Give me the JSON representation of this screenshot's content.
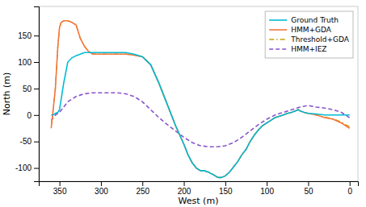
{
  "chart_data": {
    "type": "line",
    "xlabel": "West (m)",
    "ylabel": "North (m)",
    "xlim": [
      375,
      -10
    ],
    "ylim": [
      -125,
      205
    ],
    "xticks": [
      350,
      300,
      250,
      200,
      150,
      100,
      50,
      0
    ],
    "yticks": [
      -100,
      -50,
      0,
      50,
      100,
      150
    ],
    "grid": false,
    "legend": "upper right",
    "series": [
      {
        "name": "Ground Truth",
        "color": "#00bcd4",
        "line_style": "solid",
        "x": [
          0,
          5,
          10,
          20,
          30,
          40,
          50,
          55,
          60,
          62,
          65,
          70,
          75,
          80,
          90,
          95,
          100,
          105,
          110,
          115,
          120,
          125,
          130,
          135,
          140,
          145,
          150,
          155,
          158,
          160,
          162,
          165,
          168,
          170,
          172,
          174,
          175,
          176,
          178,
          180,
          185,
          190,
          195,
          200,
          210,
          220,
          230,
          240,
          250,
          260,
          270,
          280,
          290,
          300,
          310,
          315,
          320,
          325,
          330,
          335,
          340,
          345,
          348,
          350,
          352,
          355,
          358,
          360
        ],
        "values": [
          0,
          0,
          0,
          0,
          0,
          2,
          3,
          5,
          8,
          10,
          8,
          5,
          3,
          0,
          -5,
          -10,
          -15,
          -20,
          -28,
          -38,
          -50,
          -65,
          -75,
          -88,
          -98,
          -108,
          -115,
          -118,
          -118,
          -117,
          -115,
          -112,
          -110,
          -108,
          -107,
          -106,
          -105,
          -105,
          -105,
          -105,
          -100,
          -90,
          -75,
          -55,
          -20,
          20,
          60,
          95,
          110,
          115,
          118,
          118,
          118,
          118,
          118,
          118,
          118,
          115,
          112,
          108,
          100,
          60,
          30,
          10,
          5,
          3,
          0,
          0
        ]
      },
      {
        "name": "HMM+GDA",
        "color": "#f4763b",
        "line_style": "solid",
        "x": [
          0,
          5,
          10,
          20,
          30,
          40,
          50,
          55,
          60,
          62,
          65,
          70,
          75,
          80,
          90,
          95,
          100,
          105,
          110,
          115,
          120,
          125,
          130,
          135,
          140,
          145,
          150,
          155,
          158,
          160,
          162,
          165,
          168,
          170,
          172,
          174,
          175,
          176,
          178,
          180,
          185,
          190,
          195,
          200,
          210,
          220,
          230,
          240,
          250,
          260,
          270,
          280,
          290,
          300,
          310,
          315,
          320,
          325,
          328,
          330,
          335,
          340,
          345,
          348,
          350,
          352,
          355,
          358,
          360
        ],
        "values": [
          -25,
          -20,
          -15,
          -8,
          -5,
          0,
          3,
          5,
          8,
          10,
          8,
          5,
          3,
          0,
          -5,
          -10,
          -15,
          -20,
          -28,
          -38,
          -50,
          -65,
          -75,
          -88,
          -98,
          -108,
          -115,
          -118,
          -118,
          -117,
          -115,
          -112,
          -110,
          -108,
          -107,
          -106,
          -105,
          -105,
          -105,
          -105,
          -100,
          -90,
          -75,
          -55,
          -20,
          20,
          60,
          95,
          110,
          113,
          115,
          115,
          115,
          115,
          115,
          120,
          130,
          145,
          160,
          170,
          175,
          178,
          178,
          175,
          165,
          130,
          50,
          5,
          -25
        ]
      },
      {
        "name": "Threshold+GDA",
        "color": "#c8a000",
        "line_style": "dashdot",
        "x": [
          0,
          5,
          10,
          20,
          30,
          40,
          50,
          55,
          60,
          62,
          65,
          70,
          75,
          80,
          90,
          95,
          100,
          105,
          110,
          115,
          120,
          125,
          130,
          135,
          140,
          145,
          150,
          155,
          158,
          160,
          162,
          165,
          168,
          170,
          172,
          174,
          175,
          176,
          178,
          180,
          185,
          190,
          195,
          200,
          210,
          220,
          230,
          240,
          250,
          260,
          270,
          280,
          290,
          300,
          310,
          315,
          320,
          325,
          328,
          330,
          335,
          340,
          345,
          348,
          350,
          352,
          355,
          358,
          360
        ],
        "values": [
          -22,
          -18,
          -13,
          -7,
          -4,
          0,
          3,
          5,
          8,
          10,
          8,
          5,
          3,
          0,
          -5,
          -10,
          -15,
          -20,
          -28,
          -38,
          -50,
          -65,
          -75,
          -88,
          -98,
          -108,
          -115,
          -118,
          -118,
          -117,
          -115,
          -112,
          -110,
          -108,
          -107,
          -106,
          -105,
          -105,
          -105,
          -105,
          -100,
          -90,
          -75,
          -55,
          -20,
          20,
          60,
          95,
          110,
          113,
          115,
          115,
          115,
          115,
          115,
          120,
          130,
          145,
          160,
          170,
          175,
          178,
          178,
          175,
          165,
          130,
          50,
          5,
          -22
        ]
      },
      {
        "name": "HMM+IEZ",
        "color": "#8855cc",
        "line_style": "dashed",
        "x": [
          0,
          5,
          10,
          20,
          30,
          40,
          50,
          60,
          70,
          80,
          90,
          100,
          110,
          120,
          130,
          140,
          150,
          160,
          170,
          180,
          190,
          200,
          210,
          220,
          230,
          240,
          250,
          260,
          270,
          280,
          290,
          300,
          310,
          320,
          330,
          340,
          350,
          355,
          360
        ],
        "values": [
          -5,
          0,
          5,
          10,
          13,
          15,
          18,
          15,
          10,
          5,
          0,
          -8,
          -18,
          -30,
          -42,
          -52,
          -58,
          -60,
          -60,
          -58,
          -52,
          -42,
          -30,
          -18,
          -5,
          10,
          25,
          35,
          40,
          42,
          42,
          42,
          42,
          40,
          35,
          25,
          5,
          0,
          -10
        ]
      }
    ]
  }
}
